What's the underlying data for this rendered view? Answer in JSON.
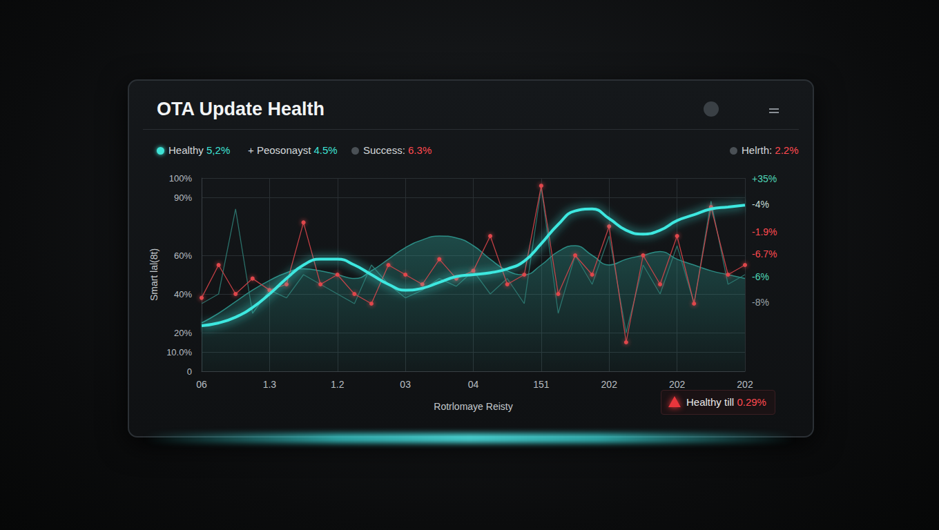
{
  "chart_data": {
    "type": "line",
    "title": "OTA Update Health",
    "stats": [
      {
        "label": "Healthy",
        "value": "5,2%",
        "marker": "dot",
        "color": "#3fe3d6"
      },
      {
        "label": "+ Peosonayst",
        "value": "4.5%",
        "marker": "none",
        "color": "#3fe3d6"
      },
      {
        "label": "Success:",
        "value": "6.3%",
        "marker": "dot",
        "color": "#ff4a50"
      },
      {
        "label": "Helrth:",
        "value": "2.2%",
        "marker": "dot",
        "color": "#ff4a50"
      }
    ],
    "y_label": "Smart lal(8t)",
    "x_label": "Rotrlomaye Reisty",
    "categories": [
      "06",
      null,
      null,
      null,
      "1.3",
      null,
      null,
      null,
      "1.2",
      null,
      null,
      null,
      "03",
      null,
      null,
      null,
      "04",
      null,
      null,
      null,
      "151",
      null,
      null,
      null,
      "202",
      null,
      null,
      null,
      "202",
      null,
      null,
      null,
      "202"
    ],
    "ylim": [
      0,
      100
    ],
    "yticks": [
      0,
      {
        "value": 10,
        "label": "10.0%"
      },
      {
        "value": 20,
        "label": "20%"
      },
      {
        "value": 40,
        "label": "40%"
      },
      {
        "value": 60,
        "label": "60%"
      },
      {
        "value": 90,
        "label": "90%"
      },
      {
        "value": 100,
        "label": "100%"
      }
    ],
    "grid": true,
    "series": [
      {
        "type": "area",
        "color": "#2f9e94",
        "line_style": "smooth",
        "marker": "none",
        "values": [
          25,
          30,
          36,
          42,
          47,
          51,
          53,
          52,
          50,
          48,
          52,
          58,
          64,
          68,
          70,
          69,
          65,
          58,
          52,
          50,
          55,
          62,
          65,
          60,
          55,
          58,
          60,
          62,
          58,
          55,
          52,
          50,
          48
        ]
      },
      {
        "type": "line",
        "color": "#2f8078",
        "line_style": "solid",
        "marker": "none",
        "values": [
          35,
          40,
          84,
          30,
          42,
          38,
          50,
          45,
          40,
          35,
          55,
          45,
          38,
          42,
          48,
          44,
          52,
          40,
          48,
          35,
          95,
          30,
          60,
          45,
          70,
          20,
          55,
          40,
          65,
          35,
          88,
          45,
          50
        ]
      },
      {
        "type": "line",
        "color": "#e0474c",
        "line_style": "solid",
        "marker": "circle",
        "values": [
          38,
          55,
          40,
          48,
          42,
          45,
          77,
          45,
          50,
          40,
          35,
          55,
          50,
          45,
          58,
          48,
          52,
          70,
          45,
          50,
          96,
          40,
          60,
          50,
          75,
          15,
          60,
          45,
          70,
          35,
          85,
          50,
          55
        ]
      },
      {
        "type": "line",
        "color": "#3ee8e0",
        "line_style": "smooth",
        "marker": "none",
        "values": [
          23.6,
          25,
          28,
          33,
          40,
          48,
          55,
          58,
          58,
          55,
          50,
          45,
          42,
          43,
          46,
          49,
          50,
          51,
          53,
          57,
          66,
          76,
          83,
          84,
          79,
          73,
          71,
          73,
          78,
          81,
          84,
          85,
          86
        ]
      }
    ],
    "annotations": [
      {
        "text": "+35%",
        "color": "#4fd8b8"
      },
      {
        "text": "-4%",
        "color": "#c5ddd7"
      },
      {
        "text": "-1.9%",
        "color": "#ff4a50"
      },
      {
        "text": "-6.7%",
        "color": "#ff4a50"
      },
      {
        "text": "-6%",
        "color": "#4fd8b8"
      },
      {
        "text": "-8%",
        "color": "#9aa3a8"
      }
    ],
    "alert": {
      "text": "Healthy till",
      "value": "0.29%",
      "color": "#ff4a50"
    }
  }
}
